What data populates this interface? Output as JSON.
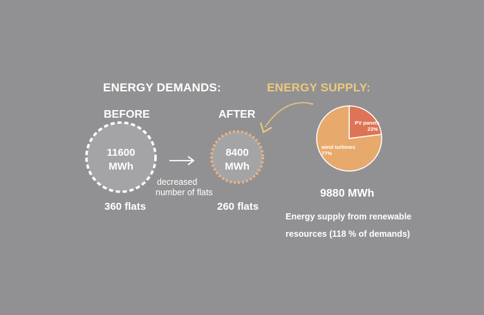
{
  "demands": {
    "title": "ENERGY DEMANDS:",
    "before": {
      "label": "BEFORE",
      "value": "11600",
      "unit": "MWh",
      "flats": "360 flats"
    },
    "after": {
      "label": "AFTER",
      "value": "8400",
      "unit": "MWh",
      "flats": "260 flats"
    },
    "change_note_1": "decreased",
    "change_note_2": "number of flats"
  },
  "supply": {
    "title": "ENERGY SUPPLY:",
    "total": "9880 MWh",
    "caption_1": "Energy supply from renewable",
    "caption_2": "resources (118 % of demands)"
  },
  "colors": {
    "background": "#919193",
    "supply_title": "#ecc97b",
    "after_ring": "#eab184",
    "pv": "#dc7455",
    "wind": "#e8a96c",
    "arrow_curve": "#ecc97b"
  },
  "chart_data": {
    "type": "pie",
    "slices": [
      {
        "label": "PV panels",
        "value": 23,
        "value_label": "23%"
      },
      {
        "label": "wind turbines",
        "value": 77,
        "value_label": "77%"
      }
    ]
  }
}
